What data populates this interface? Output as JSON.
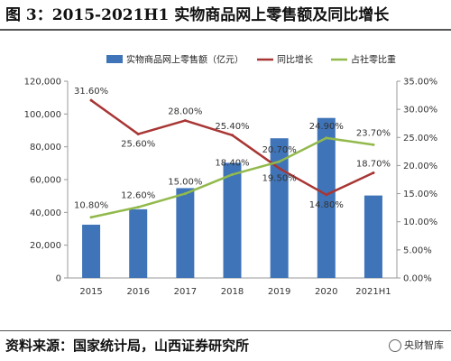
{
  "title": "图 3：2015-2021H1 实物商品网上零售额及同比增长",
  "source": "资料来源：国家统计局，山西证券研究所",
  "watermark": "央财智库",
  "colors": {
    "bar": "#3F74B8",
    "yoy": "#A83634",
    "share": "#92B94B"
  },
  "chart_data": {
    "type": "bar",
    "categories": [
      "2015",
      "2016",
      "2017",
      "2018",
      "2019",
      "2020",
      "2021H1"
    ],
    "series": [
      {
        "name": "实物商品网上零售额（亿元）",
        "type": "bar",
        "axis": "left",
        "values": [
          32500,
          41900,
          54800,
          70200,
          85200,
          97600,
          50300
        ]
      },
      {
        "name": "同比增长",
        "type": "line",
        "axis": "right",
        "values": [
          31.6,
          25.6,
          28.0,
          25.4,
          19.5,
          14.8,
          18.7
        ],
        "labels": [
          "31.60%",
          "25.60%",
          "28.00%",
          "25.40%",
          "19.50%",
          "14.80%",
          "18.70%"
        ]
      },
      {
        "name": "占社零比重",
        "type": "line",
        "axis": "right",
        "values": [
          10.8,
          12.6,
          15.0,
          18.4,
          20.7,
          24.9,
          23.7
        ],
        "labels": [
          "10.80%",
          "12.60%",
          "15.00%",
          "18.40%",
          "20.70%",
          "24.90%",
          "23.70%"
        ]
      }
    ],
    "y_left": {
      "min": 0,
      "max": 120000,
      "ticks": [
        "0",
        "20,000",
        "40,000",
        "60,000",
        "80,000",
        "100,000",
        "120,000"
      ]
    },
    "y_right": {
      "min": 0,
      "max": 35,
      "ticks": [
        "0.00%",
        "5.00%",
        "10.00%",
        "15.00%",
        "20.00%",
        "25.00%",
        "30.00%",
        "35.00%"
      ]
    },
    "legend_position": "top",
    "grid": false
  }
}
